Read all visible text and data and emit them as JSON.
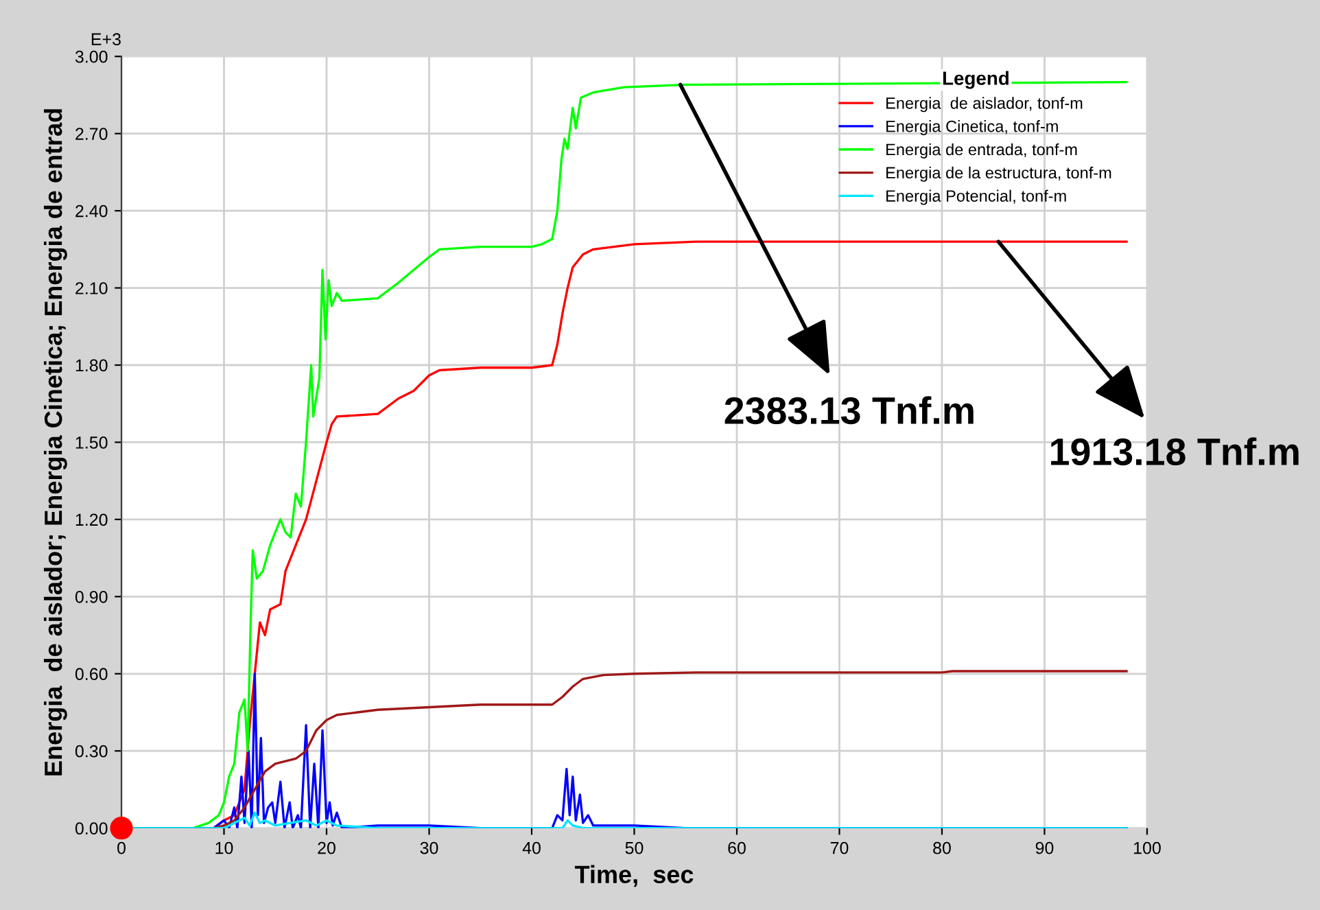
{
  "chart_data": {
    "type": "line",
    "xlabel": "Time,  sec",
    "ylabel": "Energia  de aislador; Energia Cinetica; Energia de entrad",
    "legend_title": "Legend",
    "xlim": [
      0,
      100
    ],
    "xticks": [
      0,
      10,
      20,
      30,
      40,
      50,
      60,
      70,
      80,
      90,
      100
    ],
    "ylim": [
      0,
      3.0
    ],
    "yticks": [
      {
        "value": 0,
        "label": "0.00"
      },
      {
        "value": 0.3,
        "label": "0.30"
      },
      {
        "value": 0.6,
        "label": "0.60"
      },
      {
        "value": 0.9,
        "label": "0.90"
      },
      {
        "value": 1.2,
        "label": "1.20"
      },
      {
        "value": 1.5,
        "label": "1.50"
      },
      {
        "value": 1.8,
        "label": "1.80"
      },
      {
        "value": 2.1,
        "label": "2.10"
      },
      {
        "value": 2.4,
        "label": "2.40"
      },
      {
        "value": 2.7,
        "label": "2.70"
      },
      {
        "value": 3.0,
        "label": "3.00"
      }
    ],
    "grid": true,
    "legend": "top right",
    "marker": "none",
    "line_style": "solid",
    "annotations": [
      "E+3",
      {
        "text": "2383.13 Tnf.m",
        "x": 54.5,
        "y": 2.89
      },
      {
        "text": "1913.18 Tnf.m",
        "x": 85.5,
        "y": 2.28
      }
    ],
    "series": [
      {
        "name": "Energia  de aislador, tonf-m",
        "color": "#ff0000",
        "x": [
          0,
          9,
          10,
          11,
          12,
          12.5,
          13,
          13.5,
          14,
          14.5,
          15.5,
          16,
          17,
          18,
          19,
          20,
          20.5,
          21,
          25,
          27,
          28.5,
          30,
          31,
          35,
          40,
          42,
          42.5,
          43,
          43.5,
          44,
          45,
          46,
          50,
          56,
          98
        ],
        "values": [
          0,
          0,
          0.03,
          0.05,
          0.15,
          0.4,
          0.6,
          0.8,
          0.75,
          0.85,
          0.87,
          1.0,
          1.1,
          1.2,
          1.35,
          1.5,
          1.57,
          1.6,
          1.61,
          1.67,
          1.7,
          1.76,
          1.78,
          1.79,
          1.79,
          1.8,
          1.88,
          2.0,
          2.1,
          2.18,
          2.23,
          2.25,
          2.27,
          2.28,
          2.28
        ]
      },
      {
        "name": "Energia Cinetica, tonf-m",
        "color": "#0000ff",
        "x": [
          0,
          9,
          10,
          10.5,
          11,
          11.3,
          11.7,
          12,
          12.4,
          12.7,
          13,
          13.3,
          13.6,
          13.9,
          14.3,
          14.7,
          15,
          15.5,
          15.9,
          16.4,
          16.7,
          17.2,
          17.5,
          18,
          18.4,
          18.8,
          19.2,
          19.6,
          20,
          20.3,
          20.6,
          21,
          21.5,
          25,
          30,
          35,
          42,
          42.5,
          43,
          43.4,
          43.7,
          44,
          44.3,
          44.7,
          45,
          45.5,
          46,
          50,
          55,
          98
        ],
        "values": [
          0,
          0,
          0.03,
          0,
          0.08,
          0,
          0.2,
          0.02,
          0.3,
          0,
          0.6,
          0.05,
          0.35,
          0.02,
          0.08,
          0.1,
          0.02,
          0.18,
          0,
          0.1,
          0,
          0.05,
          0,
          0.4,
          0,
          0.25,
          0,
          0.38,
          0.02,
          0.1,
          0.01,
          0.06,
          0,
          0.01,
          0.01,
          0,
          0,
          0.05,
          0.03,
          0.23,
          0.05,
          0.2,
          0.03,
          0.13,
          0.02,
          0.05,
          0.01,
          0.01,
          0,
          0
        ]
      },
      {
        "name": "Energia de entrada, tonf-m",
        "color": "#00ff00",
        "x": [
          0,
          7,
          8.5,
          9.5,
          10,
          10.5,
          11,
          11.5,
          12,
          12.3,
          12.6,
          12.8,
          13.2,
          13.8,
          14.5,
          15.5,
          16,
          16.5,
          17,
          17.5,
          18,
          18.5,
          18.7,
          19.3,
          19.6,
          19.9,
          20.2,
          20.5,
          21,
          21.5,
          25,
          27,
          30,
          31,
          35,
          40,
          41,
          42,
          42.5,
          42.9,
          43.2,
          43.5,
          44,
          44.3,
          44.8,
          46,
          49,
          55,
          98
        ],
        "values": [
          0,
          0,
          0.02,
          0.05,
          0.1,
          0.2,
          0.25,
          0.45,
          0.5,
          0.3,
          0.8,
          1.08,
          0.97,
          1.0,
          1.1,
          1.2,
          1.15,
          1.13,
          1.3,
          1.25,
          1.5,
          1.8,
          1.6,
          1.75,
          2.17,
          1.9,
          2.13,
          2.03,
          2.08,
          2.05,
          2.06,
          2.12,
          2.22,
          2.25,
          2.26,
          2.26,
          2.27,
          2.29,
          2.4,
          2.6,
          2.68,
          2.64,
          2.8,
          2.72,
          2.84,
          2.86,
          2.88,
          2.89,
          2.9
        ]
      },
      {
        "name": "Energia de la estructura, tonf-m",
        "color": "#a01818",
        "x": [
          0,
          9,
          10,
          11,
          12,
          13,
          14,
          15,
          17,
          18,
          19,
          20,
          21,
          23,
          25,
          30,
          35,
          42,
          43,
          44,
          45,
          47,
          50,
          56,
          80,
          81,
          98
        ],
        "values": [
          0,
          0,
          0.01,
          0.03,
          0.08,
          0.15,
          0.22,
          0.25,
          0.27,
          0.3,
          0.38,
          0.42,
          0.44,
          0.45,
          0.46,
          0.47,
          0.48,
          0.48,
          0.51,
          0.55,
          0.58,
          0.595,
          0.6,
          0.605,
          0.605,
          0.61,
          0.61
        ]
      },
      {
        "name": "Energia Potencial, tonf-m",
        "color": "#00e5ff",
        "x": [
          0,
          10,
          11,
          12,
          12.5,
          13,
          13.5,
          14,
          15,
          18,
          19,
          20,
          21,
          25,
          43,
          43.5,
          44,
          45,
          98
        ],
        "values": [
          0,
          0,
          0.02,
          0.04,
          0.01,
          0.06,
          0.02,
          0.03,
          0.01,
          0.03,
          0.01,
          0.03,
          0.01,
          0,
          0,
          0.03,
          0.01,
          0,
          0
        ]
      },
      {
        "type": "scatter",
        "color": "#ff0000",
        "marker": "circle",
        "x": [
          0
        ],
        "values": [
          0
        ]
      }
    ]
  }
}
